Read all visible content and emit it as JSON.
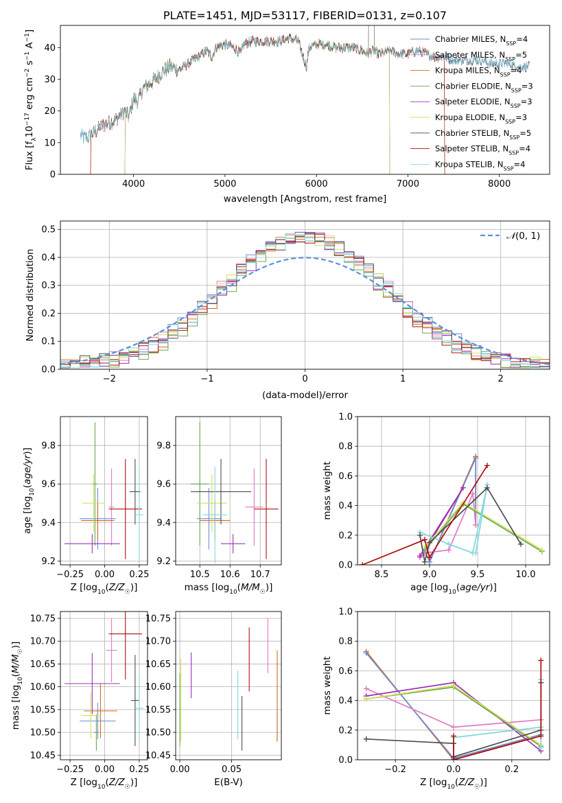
{
  "colors": {
    "chabrier_miles": "#6b8ed6",
    "salpeter_miles": "#e377c2",
    "kroupa_miles": "#d2691e",
    "chabrier_elodie": "#6aa84f",
    "salpeter_elodie": "#9b30b5",
    "kroupa_elodie": "#d4e05a",
    "chabrier_stelib": "#4d4d4d",
    "salpeter_stelib": "#b00d0d",
    "kroupa_stelib": "#7fd8dc"
  },
  "chart_data": [
    {
      "id": "spectrum",
      "type": "line",
      "title": "PLATE=1451, MJD=53117, FIBERID=0131, z=0.107",
      "xlabel": "wavelength [Angstrom, rest frame]",
      "ylabel": "Flux [f_λ 10^-17 erg cm^-2 s^-1 A^-1]",
      "xlim": [
        3200,
        8550
      ],
      "ylim": [
        0,
        47
      ],
      "xticks": [
        4000,
        5000,
        6000,
        7000,
        8000
      ],
      "yticks": [
        0,
        10,
        20,
        30,
        40
      ],
      "grid": false,
      "legend_position": "top-right",
      "spectrum_envelope": {
        "x": [
          3420,
          3500,
          3600,
          3700,
          3800,
          3900,
          3950,
          4000,
          4050,
          4100,
          4200,
          4300,
          4400,
          4500,
          4600,
          4700,
          4800,
          4860,
          4900,
          5000,
          5100,
          5175,
          5200,
          5300,
          5400,
          5500,
          5600,
          5700,
          5800,
          5890,
          5920,
          6000,
          6100,
          6200,
          6300,
          6400,
          6500,
          6563,
          6600,
          6700,
          6800,
          6900,
          7000,
          7100,
          7200,
          7300,
          7400,
          7500,
          7600,
          7700,
          7800,
          7900,
          8000,
          8100,
          8200,
          8300
        ],
        "y": [
          12,
          11.5,
          14,
          16,
          17,
          20,
          18,
          24,
          23,
          27,
          29,
          32,
          34,
          33,
          35,
          37,
          39,
          37,
          40,
          41,
          40,
          38,
          41,
          42,
          42,
          42,
          42,
          43,
          42,
          34,
          40,
          41,
          41,
          40,
          40,
          40,
          39,
          38,
          39,
          38,
          39,
          38,
          38,
          39,
          38,
          37,
          37,
          36,
          36,
          36,
          36,
          35,
          35,
          35,
          34,
          34
        ]
      },
      "series": [
        {
          "name": "Chabrier MILES, N_SSP=4",
          "key": "chabrier_miles",
          "cut_low": null,
          "cut_high": null
        },
        {
          "name": "Salpeter MILES, N_SSP=5",
          "key": "salpeter_miles",
          "cut_low": null,
          "cut_high": null
        },
        {
          "name": "Kroupa MILES, N_SSP=4",
          "key": "kroupa_miles",
          "cut_low": 3530,
          "cut_high": 7400
        },
        {
          "name": "Chabrier ELODIE, N_SSP=3",
          "key": "chabrier_elodie",
          "cut_low": 3910,
          "cut_high": 6800
        },
        {
          "name": "Salpeter ELODIE, N_SSP=3",
          "key": "salpeter_elodie",
          "cut_low": 3910,
          "cut_high": 6800
        },
        {
          "name": "Kroupa ELODIE, N_SSP=3",
          "key": "kroupa_elodie",
          "cut_low": 3910,
          "cut_high": 6800
        },
        {
          "name": "Chabrier STELIB, N_SSP=5",
          "key": "chabrier_stelib",
          "cut_low": null,
          "cut_high": null
        },
        {
          "name": "Salpeter STELIB, N_SSP=4",
          "key": "salpeter_stelib",
          "cut_low": 3530,
          "cut_high": 7400
        },
        {
          "name": "Kroupa STELIB, N_SSP=4",
          "key": "kroupa_stelib",
          "cut_low": null,
          "cut_high": null
        }
      ]
    },
    {
      "id": "residuals",
      "type": "line",
      "xlabel": "(data-model)/error",
      "ylabel": "Normed distribution",
      "xlim": [
        -2.5,
        2.5
      ],
      "ylim": [
        0,
        0.53
      ],
      "xticks": [
        -2,
        -1,
        0,
        1,
        2
      ],
      "xtick_labels": [
        "−2",
        "−1",
        "0",
        "1",
        "2"
      ],
      "yticks": [
        0.0,
        0.1,
        0.2,
        0.3,
        0.4,
        0.5
      ],
      "grid": true,
      "legend_position": "top-right",
      "gaussian": {
        "name": "N(0,1)",
        "mean": 0,
        "sigma": 1
      },
      "histogram": {
        "bin_start": -2.5,
        "bin_width": 0.1,
        "bins": 50,
        "sigma": 0.82,
        "peak": 0.46
      }
    },
    {
      "id": "z_vs_age",
      "type": "scatter",
      "xlabel": "Z [log10(Z/Z☉)]",
      "ylabel": "age [log10(age/yr)]",
      "xlim": [
        -0.32,
        0.31
      ],
      "ylim": [
        9.18,
        9.95
      ],
      "xticks": [
        -0.25,
        0.0,
        0.25
      ],
      "xtick_labels": [
        "−0.25",
        "0.00",
        "0.25"
      ],
      "yticks": [
        9.2,
        9.4,
        9.6,
        9.8
      ],
      "grid": true,
      "points": [
        {
          "key": "chabrier_miles",
          "x": -0.05,
          "xerr": 0.13,
          "y": 9.42,
          "yerr": 0.16
        },
        {
          "key": "salpeter_miles",
          "x": 0.05,
          "xerr": 0.02,
          "y": 9.48,
          "yerr": 0.2
        },
        {
          "key": "kroupa_miles",
          "x": -0.05,
          "xerr": 0.12,
          "y": 9.41,
          "yerr": 0.1
        },
        {
          "key": "chabrier_elodie",
          "x": -0.07,
          "xerr": 0.02,
          "y": 9.6,
          "yerr": 0.32
        },
        {
          "key": "salpeter_elodie",
          "x": -0.09,
          "xerr": 0.2,
          "y": 9.29,
          "yerr": 0.05
        },
        {
          "key": "kroupa_elodie",
          "x": -0.08,
          "xerr": 0.08,
          "y": 9.5,
          "yerr": 0.15
        },
        {
          "key": "chabrier_stelib",
          "x": 0.22,
          "xerr": 0.04,
          "y": 9.56,
          "yerr": 0.17
        },
        {
          "key": "salpeter_stelib",
          "x": 0.15,
          "xerr": 0.12,
          "y": 9.47,
          "yerr": 0.26
        },
        {
          "key": "kroupa_stelib",
          "x": 0.25,
          "xerr": 0.03,
          "y": 9.44,
          "yerr": 0.25
        }
      ]
    },
    {
      "id": "mass_vs_age",
      "type": "scatter",
      "xlabel": "mass [log10(M/M☉)]",
      "ylabel": "",
      "xlim": [
        10.42,
        10.77
      ],
      "ylim": [
        9.18,
        9.95
      ],
      "xticks": [
        10.5,
        10.6,
        10.7
      ],
      "xtick_labels": [
        "10.5",
        "10.6",
        "10.7"
      ],
      "yticks": [
        9.2,
        9.4,
        9.6,
        9.8
      ],
      "grid": true,
      "points": [
        {
          "key": "chabrier_miles",
          "x": 10.53,
          "xerr": 0.04,
          "y": 9.42,
          "yerr": 0.16
        },
        {
          "key": "salpeter_miles",
          "x": 10.68,
          "xerr": 0.03,
          "y": 9.48,
          "yerr": 0.2
        },
        {
          "key": "kroupa_miles",
          "x": 10.55,
          "xerr": 0.05,
          "y": 9.41,
          "yerr": 0.1
        },
        {
          "key": "chabrier_elodie",
          "x": 10.5,
          "xerr": 0.03,
          "y": 9.6,
          "yerr": 0.32
        },
        {
          "key": "salpeter_elodie",
          "x": 10.61,
          "xerr": 0.04,
          "y": 9.29,
          "yerr": 0.05
        },
        {
          "key": "kroupa_elodie",
          "x": 10.54,
          "xerr": 0.05,
          "y": 9.5,
          "yerr": 0.15
        },
        {
          "key": "chabrier_stelib",
          "x": 10.57,
          "xerr": 0.1,
          "y": 9.56,
          "yerr": 0.17
        },
        {
          "key": "salpeter_stelib",
          "x": 10.72,
          "xerr": 0.04,
          "y": 9.47,
          "yerr": 0.26
        },
        {
          "key": "kroupa_stelib",
          "x": 10.55,
          "xerr": 0.04,
          "y": 9.44,
          "yerr": 0.25
        }
      ]
    },
    {
      "id": "age_weights",
      "type": "line",
      "xlabel": "age [log10(age/yr)]",
      "ylabel": "mass weight",
      "xlim": [
        8.25,
        10.25
      ],
      "ylim": [
        0,
        1.0
      ],
      "xticks": [
        8.5,
        9.0,
        9.5,
        10.0
      ],
      "xtick_labels": [
        "8.5",
        "9.0",
        "9.5",
        "10.0"
      ],
      "yticks": [
        0.0,
        0.2,
        0.4,
        0.6,
        0.8,
        1.0
      ],
      "grid": true,
      "series": [
        {
          "key": "kroupa_miles",
          "x": [
            8.95,
            9.0,
            9.48,
            9.48
          ],
          "y": [
            0.1,
            0.02,
            0.73,
            0.27
          ]
        },
        {
          "key": "chabrier_miles",
          "x": [
            8.95,
            9.0,
            9.48,
            9.48
          ],
          "y": [
            0.1,
            0.02,
            0.72,
            0.27
          ]
        },
        {
          "key": "salpeter_miles",
          "x": [
            8.9,
            8.95,
            9.2,
            9.45,
            9.48
          ],
          "y": [
            0.05,
            0.08,
            0.1,
            0.48,
            0.27
          ]
        },
        {
          "key": "salpeter_elodie",
          "x": [
            8.9,
            9.35,
            9.0
          ],
          "y": [
            0.06,
            0.52,
            0.15
          ]
        },
        {
          "key": "chabrier_elodie",
          "x": [
            8.95,
            9.35,
            10.17
          ],
          "y": [
            0.1,
            0.41,
            0.09
          ]
        },
        {
          "key": "kroupa_elodie",
          "x": [
            8.95,
            9.35,
            10.17
          ],
          "y": [
            0.12,
            0.42,
            0.1
          ]
        },
        {
          "key": "kroupa_stelib",
          "x": [
            8.9,
            9.2,
            9.45,
            9.6,
            9.48
          ],
          "y": [
            0.22,
            0.14,
            0.08,
            0.54,
            0.08
          ]
        },
        {
          "key": "chabrier_stelib",
          "x": [
            8.9,
            8.95,
            9.0,
            9.6,
            9.95
          ],
          "y": [
            0.2,
            0.02,
            0.15,
            0.52,
            0.14
          ]
        },
        {
          "key": "salpeter_stelib",
          "x": [
            8.3,
            8.95,
            9.0,
            9.6
          ],
          "y": [
            0.0,
            0.17,
            0.05,
            0.67
          ]
        }
      ]
    },
    {
      "id": "z_vs_mass",
      "type": "scatter",
      "xlabel": "Z [log10(Z/Z☉)]",
      "ylabel": "mass [log10(M/M☉)]",
      "xlim": [
        -0.32,
        0.31
      ],
      "ylim": [
        10.44,
        10.765
      ],
      "xticks": [
        -0.25,
        0.0,
        0.25
      ],
      "xtick_labels": [
        "−0.25",
        "0.00",
        "0.25"
      ],
      "yticks": [
        10.45,
        10.5,
        10.55,
        10.6,
        10.65,
        10.7,
        10.75
      ],
      "grid": true,
      "points": [
        {
          "key": "chabrier_miles",
          "x": -0.05,
          "xerr": 0.13,
          "y": 10.525,
          "yerr": 0.04
        },
        {
          "key": "salpeter_miles",
          "x": 0.05,
          "xerr": 0.04,
          "y": 10.68,
          "yerr": 0.07
        },
        {
          "key": "kroupa_miles",
          "x": -0.03,
          "xerr": 0.12,
          "y": 10.547,
          "yerr": 0.06
        },
        {
          "key": "chabrier_elodie",
          "x": -0.06,
          "xerr": 0.02,
          "y": 10.5,
          "yerr": 0.04
        },
        {
          "key": "salpeter_elodie",
          "x": -0.09,
          "xerr": 0.2,
          "y": 10.607,
          "yerr": 0.067
        },
        {
          "key": "kroupa_elodie",
          "x": -0.1,
          "xerr": 0.07,
          "y": 10.537,
          "yerr": 0.05
        },
        {
          "key": "chabrier_stelib",
          "x": 0.22,
          "xerr": 0.03,
          "y": 10.57,
          "yerr": 0.1
        },
        {
          "key": "salpeter_stelib",
          "x": 0.15,
          "xerr": 0.12,
          "y": 10.716,
          "yerr": 0.1
        },
        {
          "key": "kroupa_stelib",
          "x": 0.25,
          "xerr": 0.03,
          "y": 10.553,
          "yerr": 0.07
        }
      ]
    },
    {
      "id": "ebv_vs_mass",
      "type": "scatter",
      "xlabel": "E(B-V)",
      "ylabel": "",
      "xlim": [
        -0.004,
        0.098
      ],
      "ylim": [
        10.44,
        10.765
      ],
      "xticks": [
        0.0,
        0.05
      ],
      "xtick_labels": [
        "0.00",
        "0.05"
      ],
      "yticks": [
        10.45,
        10.5,
        10.55,
        10.6,
        10.65,
        10.7,
        10.75
      ],
      "grid": true,
      "points": [
        {
          "key": "chabrier_miles",
          "x": 0.094,
          "xerr": 0,
          "y": 10.51,
          "yerr": 0.03
        },
        {
          "key": "salpeter_miles",
          "x": 0.085,
          "xerr": 0,
          "y": 10.69,
          "yerr": 0.06
        },
        {
          "key": "kroupa_miles",
          "x": 0.094,
          "xerr": 0,
          "y": 10.58,
          "yerr": 0.1
        },
        {
          "key": "chabrier_elodie",
          "x": 0.0,
          "xerr": 0,
          "y": 10.55,
          "yerr": 0.08
        },
        {
          "key": "salpeter_elodie",
          "x": 0.011,
          "xerr": 0,
          "y": 10.625,
          "yerr": 0.05
        },
        {
          "key": "kroupa_elodie",
          "x": 0.001,
          "xerr": 0,
          "y": 10.57,
          "yerr": 0.09
        },
        {
          "key": "chabrier_stelib",
          "x": 0.06,
          "xerr": 0,
          "y": 10.52,
          "yerr": 0.06
        },
        {
          "key": "salpeter_stelib",
          "x": 0.067,
          "xerr": 0,
          "y": 10.66,
          "yerr": 0.07
        },
        {
          "key": "kroupa_stelib",
          "x": 0.056,
          "xerr": 0,
          "y": 10.56,
          "yerr": 0.075
        }
      ]
    },
    {
      "id": "z_weights",
      "type": "line",
      "xlabel": "Z [log10(Z/Z☉)]",
      "ylabel": "mass weight",
      "xlim": [
        -0.33,
        0.33
      ],
      "ylim": [
        0,
        1.0
      ],
      "xticks": [
        -0.2,
        0.0,
        0.2
      ],
      "xtick_labels": [
        "−0.2",
        "0.0",
        "0.2"
      ],
      "yticks": [
        0.0,
        0.2,
        0.4,
        0.6,
        0.8,
        1.0
      ],
      "grid": true,
      "series": [
        {
          "key": "kroupa_miles",
          "x": [
            -0.3,
            0.0,
            0.3
          ],
          "y": [
            0.73,
            0.0,
            0.17
          ]
        },
        {
          "key": "chabrier_miles",
          "x": [
            -0.3,
            0.0,
            0.3
          ],
          "y": [
            0.72,
            0.01,
            0.17
          ]
        },
        {
          "key": "salpeter_miles",
          "x": [
            -0.3,
            0.0,
            0.3
          ],
          "y": [
            0.48,
            0.22,
            0.27
          ]
        },
        {
          "key": "salpeter_elodie",
          "x": [
            -0.3,
            0.0,
            0.3
          ],
          "y": [
            0.43,
            0.52,
            0.06
          ]
        },
        {
          "key": "chabrier_elodie",
          "x": [
            -0.3,
            0.0,
            0.3
          ],
          "y": [
            0.41,
            0.49,
            0.09
          ]
        },
        {
          "key": "kroupa_elodie",
          "x": [
            -0.3,
            0.0,
            0.3
          ],
          "y": [
            0.41,
            0.5,
            0.1
          ]
        },
        {
          "key": "kroupa_stelib",
          "x": [
            0.0,
            0.3,
            0.3,
            0.3
          ],
          "y": [
            0.15,
            0.22,
            0.54,
            0.08
          ]
        },
        {
          "key": "chabrier_stelib",
          "x": [
            -0.3,
            0.0,
            0.0,
            0.3,
            0.3
          ],
          "y": [
            0.14,
            0.11,
            0.02,
            0.2,
            0.52
          ]
        },
        {
          "key": "salpeter_stelib",
          "x": [
            0.0,
            0.0,
            0.3,
            0.3
          ],
          "y": [
            0.16,
            0.0,
            0.16,
            0.67
          ]
        }
      ]
    }
  ]
}
